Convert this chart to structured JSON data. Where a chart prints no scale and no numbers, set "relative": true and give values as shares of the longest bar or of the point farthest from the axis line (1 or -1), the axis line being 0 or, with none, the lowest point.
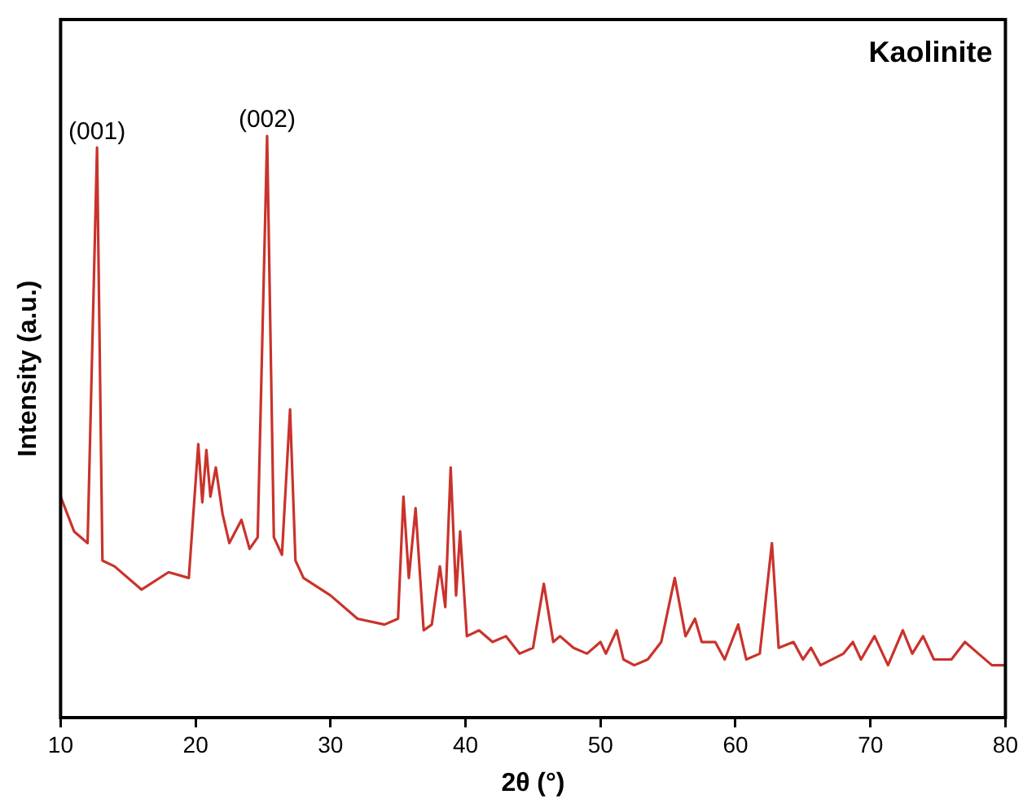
{
  "chart_data": {
    "type": "line",
    "title": "Kaolinite",
    "xlabel": "2θ (°)",
    "ylabel": "Intensity (a.u.)",
    "relative": true,
    "xlim": [
      10,
      80
    ],
    "xticks": [
      10,
      20,
      30,
      40,
      50,
      60,
      70,
      80
    ],
    "grid": false,
    "legend": false,
    "marker": "none",
    "line_style": "solid",
    "annotations": [
      {
        "text": "(001)",
        "x": 12.7,
        "y": 0.98
      },
      {
        "text": "(002)",
        "x": 25.3,
        "y": 1
      }
    ],
    "series": [
      {
        "color": "#c9332c",
        "x": [
          10,
          11,
          12,
          12.7,
          13.1,
          14,
          16,
          18,
          19.5,
          20.2,
          20.5,
          20.8,
          21.1,
          21.5,
          22,
          22.5,
          23.4,
          24,
          24.6,
          25.3,
          25.8,
          26.4,
          27,
          27.4,
          28,
          30,
          32,
          34,
          35,
          35.4,
          35.8,
          36.3,
          36.9,
          37.5,
          38.1,
          38.5,
          38.9,
          39.3,
          39.6,
          40.1,
          41,
          42,
          43,
          44,
          45,
          45.8,
          46.5,
          47,
          48,
          49,
          50,
          50.4,
          51.2,
          51.7,
          52.5,
          53.5,
          54.5,
          55.5,
          56.3,
          57,
          57.5,
          58.5,
          59.2,
          60.2,
          60.8,
          61.8,
          62.7,
          63.2,
          64.3,
          65,
          65.6,
          66.3,
          68,
          68.7,
          69.3,
          70.3,
          71.3,
          72.4,
          73.1,
          73.9,
          74.7,
          76,
          77,
          78,
          79,
          80
        ],
        "values": [
          0.38,
          0.32,
          0.3,
          0.98,
          0.27,
          0.26,
          0.22,
          0.25,
          0.24,
          0.47,
          0.37,
          0.46,
          0.38,
          0.43,
          0.35,
          0.3,
          0.34,
          0.29,
          0.31,
          1,
          0.31,
          0.28,
          0.53,
          0.27,
          0.24,
          0.21,
          0.17,
          0.16,
          0.17,
          0.38,
          0.24,
          0.36,
          0.15,
          0.16,
          0.26,
          0.19,
          0.43,
          0.21,
          0.32,
          0.14,
          0.15,
          0.13,
          0.14,
          0.11,
          0.12,
          0.23,
          0.13,
          0.14,
          0.12,
          0.11,
          0.13,
          0.11,
          0.15,
          0.1,
          0.09,
          0.1,
          0.13,
          0.24,
          0.14,
          0.17,
          0.13,
          0.13,
          0.1,
          0.16,
          0.1,
          0.11,
          0.3,
          0.12,
          0.13,
          0.1,
          0.12,
          0.09,
          0.11,
          0.13,
          0.1,
          0.14,
          0.09,
          0.15,
          0.11,
          0.14,
          0.1,
          0.1,
          0.13,
          0.11,
          0.09,
          0.09
        ]
      }
    ]
  }
}
